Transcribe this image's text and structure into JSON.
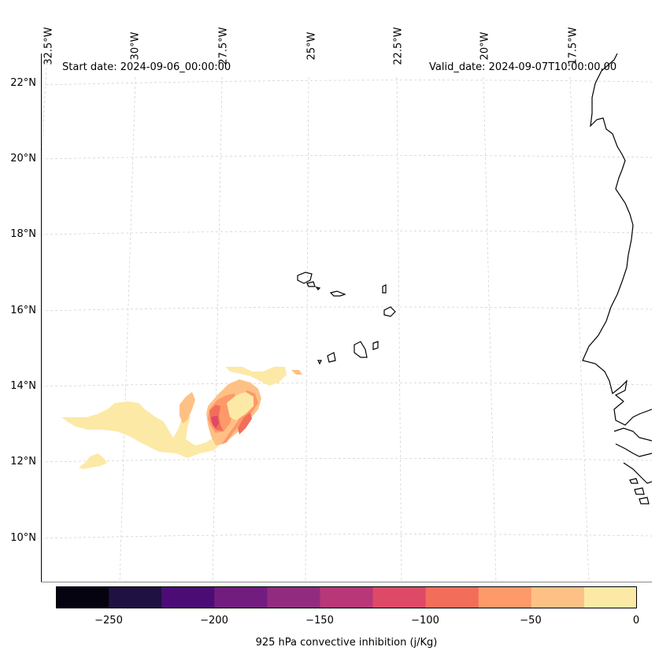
{
  "map": {
    "start_date": "Start date: 2024-09-06_00:00:00",
    "valid_date": "Valid_date: 2024-09-07T10:00:00.00",
    "lon_labels": [
      "32.5°W",
      "30°W",
      "27.5°W",
      "25°W",
      "22.5°W",
      "20°W",
      "17.5°W"
    ],
    "lat_labels": [
      "22°N",
      "20°N",
      "18°N",
      "16°N",
      "14°N",
      "12°N",
      "10°N"
    ]
  },
  "colorbar": {
    "label": "925 hPa convective inhibition (j/Kg)",
    "ticks": [
      "−250",
      "−200",
      "−150",
      "−100",
      "−50",
      "0"
    ],
    "levels": [
      -275,
      -250,
      -225,
      -200,
      -175,
      -150,
      -125,
      -100,
      -75,
      -50,
      -25,
      0
    ],
    "colors": [
      "#05030f",
      "#1f1141",
      "#4b0d75",
      "#731c80",
      "#922b80",
      "#b73779",
      "#de4968",
      "#f36d5b",
      "#fe9969",
      "#fec185",
      "#fde9a6"
    ]
  }
}
